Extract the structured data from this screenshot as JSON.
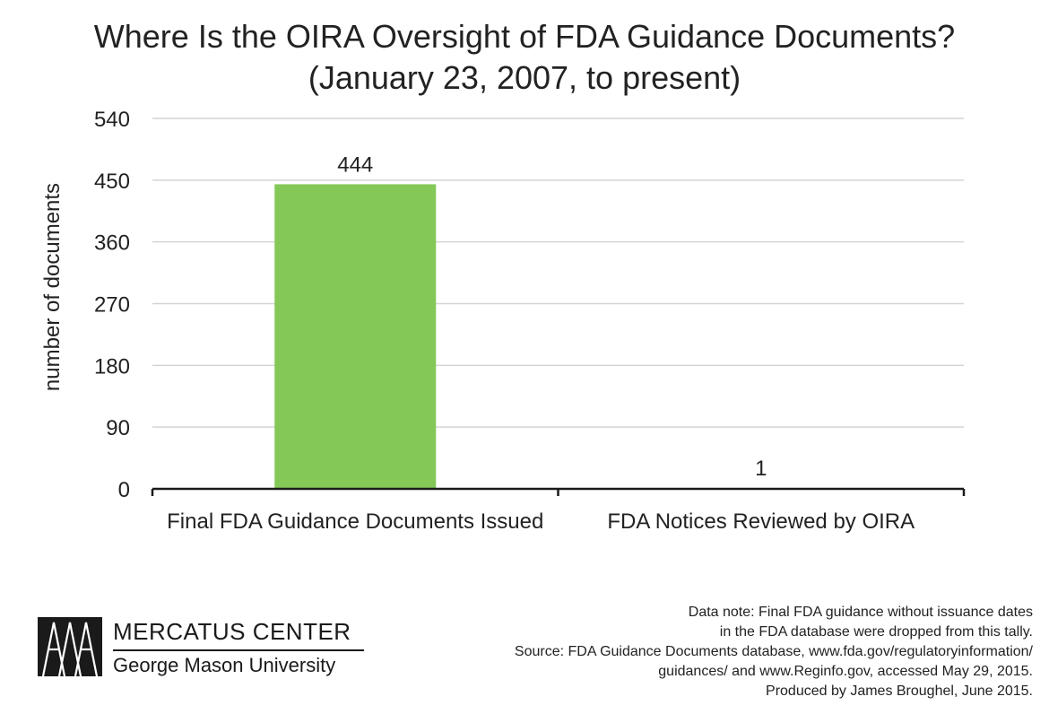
{
  "chart_data": {
    "type": "bar",
    "title_lines": [
      "Where Is the OIRA Oversight of FDA Guidance Documents?",
      "(January 23, 2007, to present)"
    ],
    "categories": [
      "Final FDA Guidance Documents Issued",
      "FDA Notices Reviewed by OIRA"
    ],
    "values": [
      444,
      1
    ],
    "data_labels": [
      "444",
      "1"
    ],
    "ylabel": "number of documents",
    "xlabel": "",
    "ylim": [
      0,
      540
    ],
    "yticks": [
      0,
      90,
      180,
      270,
      360,
      450,
      540
    ],
    "grid": true,
    "bar_color": "#84c857",
    "grid_color": "#d4d4d4",
    "axis_color": "#1a1a1a"
  },
  "footer": {
    "note_lines": [
      "Data note: Final FDA guidance without issuance dates",
      "in the FDA database were dropped from this tally.",
      "Source: FDA Guidance Documents database, www.fda.gov/regulatoryinformation/",
      "guidances/ and www.Reginfo.gov, accessed May 29, 2015.",
      "Produced by James Broughel, June 2015."
    ]
  },
  "logo": {
    "name": "MERCATUS CENTER",
    "subtitle": "George Mason University"
  }
}
